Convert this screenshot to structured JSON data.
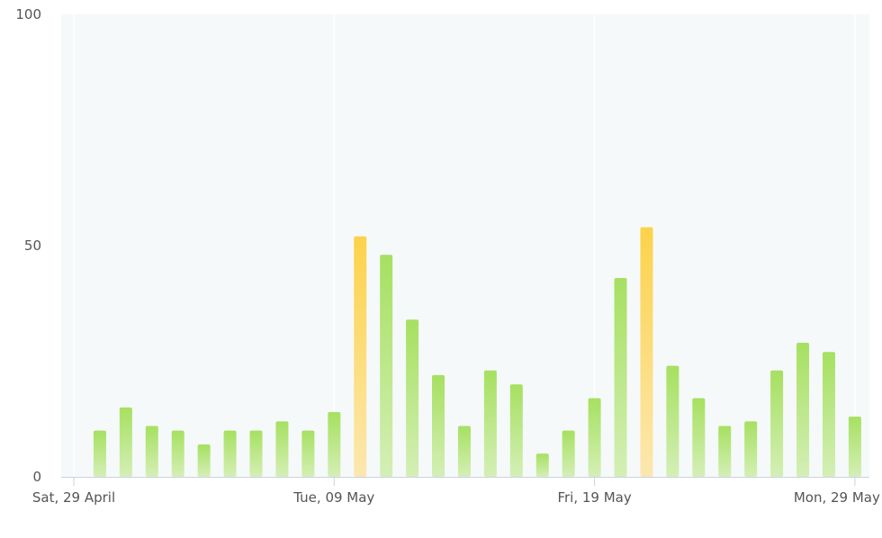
{
  "chart_data": {
    "type": "bar",
    "xlabel": "",
    "ylabel": "",
    "title": "",
    "ylim": [
      0,
      100
    ],
    "yticks": [
      0,
      50,
      100
    ],
    "x_start": "2023-04-29",
    "x_end": "2023-05-30",
    "x_ticks": [
      {
        "date": "2023-04-29",
        "label": "Sat, 29 April"
      },
      {
        "date": "2023-05-09",
        "label": "Tue, 09 May"
      },
      {
        "date": "2023-05-19",
        "label": "Fri, 19 May"
      },
      {
        "date": "2023-05-29",
        "label": "Mon, 29 May"
      }
    ],
    "grid": "vertical",
    "colors": {
      "normal_top": "#a6e060",
      "normal_bottom": "#d4efb6",
      "high_top": "#fdd24a",
      "high_bottom": "#fbe8b0",
      "plot_bg": "#f5f9f9",
      "grid": "#ffffff",
      "axis": "#c8d2e6"
    },
    "series": [
      {
        "points": [
          {
            "date": "2023-04-30",
            "value": 10
          },
          {
            "date": "2023-05-01",
            "value": 15
          },
          {
            "date": "2023-05-02",
            "value": 11
          },
          {
            "date": "2023-05-03",
            "value": 10
          },
          {
            "date": "2023-05-04",
            "value": 7
          },
          {
            "date": "2023-05-05",
            "value": 10
          },
          {
            "date": "2023-05-06",
            "value": 10
          },
          {
            "date": "2023-05-07",
            "value": 12
          },
          {
            "date": "2023-05-08",
            "value": 10
          },
          {
            "date": "2023-05-09",
            "value": 14
          },
          {
            "date": "2023-05-10",
            "value": 52,
            "highlight": true
          },
          {
            "date": "2023-05-11",
            "value": 48
          },
          {
            "date": "2023-05-12",
            "value": 34
          },
          {
            "date": "2023-05-13",
            "value": 22
          },
          {
            "date": "2023-05-14",
            "value": 11
          },
          {
            "date": "2023-05-15",
            "value": 23
          },
          {
            "date": "2023-05-16",
            "value": 20
          },
          {
            "date": "2023-05-17",
            "value": 5
          },
          {
            "date": "2023-05-18",
            "value": 10
          },
          {
            "date": "2023-05-19",
            "value": 17
          },
          {
            "date": "2023-05-20",
            "value": 43
          },
          {
            "date": "2023-05-21",
            "value": 54,
            "highlight": true
          },
          {
            "date": "2023-05-22",
            "value": 24
          },
          {
            "date": "2023-05-23",
            "value": 17
          },
          {
            "date": "2023-05-24",
            "value": 11
          },
          {
            "date": "2023-05-25",
            "value": 12
          },
          {
            "date": "2023-05-26",
            "value": 23
          },
          {
            "date": "2023-05-27",
            "value": 29
          },
          {
            "date": "2023-05-28",
            "value": 27
          },
          {
            "date": "2023-05-29",
            "value": 13
          }
        ]
      }
    ]
  }
}
